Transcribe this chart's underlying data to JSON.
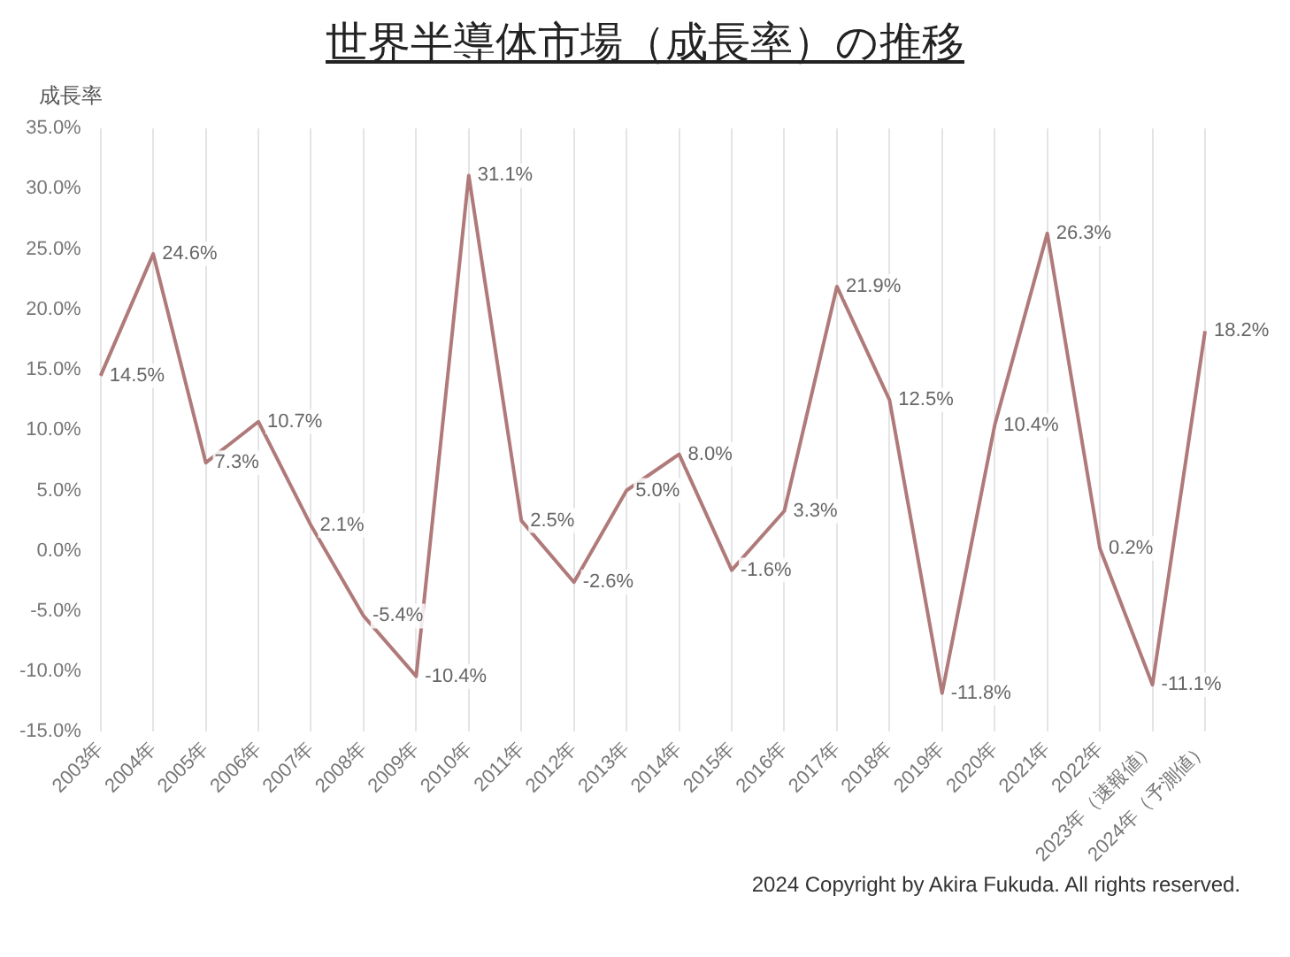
{
  "chart_data": {
    "type": "line",
    "title": "世界半導体市場（成長率）の推移",
    "ylabel": "成長率",
    "categories": [
      "2003年",
      "2004年",
      "2005年",
      "2006年",
      "2007年",
      "2008年",
      "2009年",
      "2010年",
      "2011年",
      "2012年",
      "2013年",
      "2014年",
      "2015年",
      "2016年",
      "2017年",
      "2018年",
      "2019年",
      "2020年",
      "2021年",
      "2022年",
      "2023年（速報値）",
      "2024年（予測値）"
    ],
    "series": [
      {
        "color": "#b07a7a",
        "values": [
          14.5,
          24.6,
          7.3,
          10.7,
          2.1,
          -5.4,
          -10.4,
          31.1,
          2.5,
          -2.6,
          5.0,
          8.0,
          -1.6,
          3.3,
          21.9,
          12.5,
          -11.8,
          10.4,
          26.3,
          0.2,
          -11.1,
          18.2
        ],
        "value_labels": [
          "14.5%",
          "24.6%",
          "7.3%",
          "10.7%",
          "2.1%",
          "-5.4%",
          "-10.4%",
          "31.1%",
          "2.5%",
          "-2.6%",
          "5.0%",
          "8.0%",
          "-1.6%",
          "3.3%",
          "21.9%",
          "12.5%",
          "-11.8%",
          "10.4%",
          "26.3%",
          "0.2%",
          "-11.1%",
          "18.2%"
        ]
      }
    ],
    "ylim": [
      -15,
      35
    ],
    "yticks": [
      {
        "value": -15,
        "label": "-15.0%"
      },
      {
        "value": -10,
        "label": "-10.0%"
      },
      {
        "value": -5,
        "label": "-5.0%"
      },
      {
        "value": 0,
        "label": "0.0%"
      },
      {
        "value": 5,
        "label": "5.0%"
      },
      {
        "value": 10,
        "label": "10.0%"
      },
      {
        "value": 15,
        "label": "15.0%"
      },
      {
        "value": 20,
        "label": "20.0%"
      },
      {
        "value": 25,
        "label": "25.0%"
      },
      {
        "value": 30,
        "label": "30.0%"
      },
      {
        "value": 35,
        "label": "35.0%"
      }
    ],
    "grid": "x",
    "legend": false,
    "marker": "none",
    "line_style": "solid",
    "annotations": [
      "2024 Copyright by Akira Fukuda. All rights reserved."
    ]
  }
}
